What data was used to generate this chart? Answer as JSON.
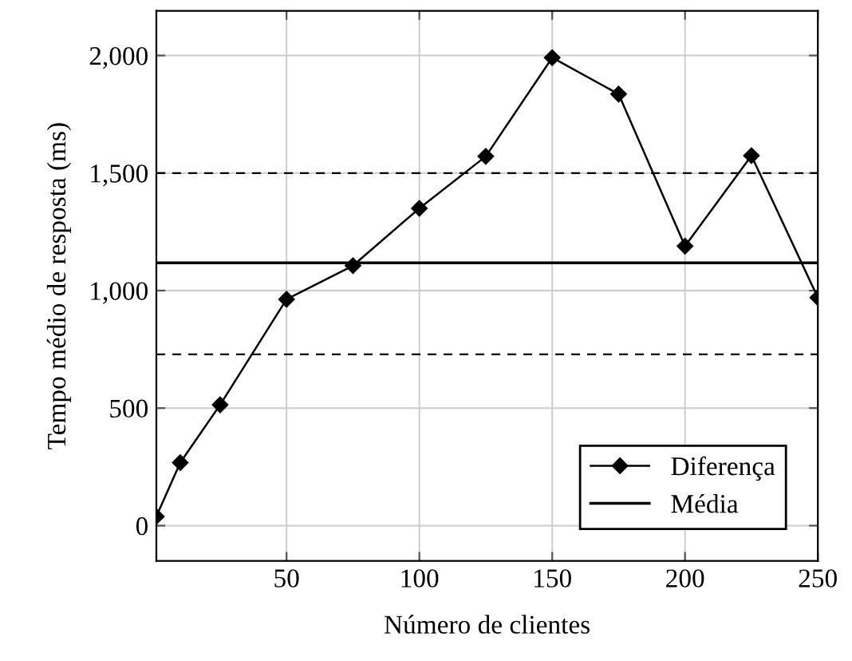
{
  "chart_data": {
    "type": "line",
    "xlabel": "Número de clientes",
    "ylabel": "Tempo médio de resposta (ms)",
    "x": [
      1,
      10,
      25,
      50,
      75,
      100,
      125,
      150,
      175,
      200,
      225,
      250
    ],
    "series": [
      {
        "name": "Diferença",
        "color": "#000000",
        "values": [
          39,
          268,
          514,
          963,
          1106,
          1350,
          1571,
          1991,
          1836,
          1189,
          1574,
          970
        ]
      }
    ],
    "marker": "diamond",
    "line_style": "solid",
    "grid": true,
    "legend": "bottom right",
    "xlim": [
      1,
      250
    ],
    "ylim": [
      -150,
      2190
    ],
    "xticks": [
      50,
      100,
      150,
      200,
      250
    ],
    "yticks": [
      0,
      500,
      {
        "value": 1000,
        "label": "1,000"
      },
      {
        "value": 1500,
        "label": "1,500"
      },
      {
        "value": 2000,
        "label": "2,000"
      }
    ],
    "ref_lines": [
      {
        "axis": "y",
        "value": 1118,
        "label": "Média",
        "color": "#000000",
        "line_style": "solid"
      },
      {
        "axis": "y",
        "value": 1500,
        "color": "#000000",
        "line_style": "dashed"
      },
      {
        "axis": "y",
        "value": 729,
        "color": "#000000",
        "line_style": "dashed"
      }
    ]
  }
}
